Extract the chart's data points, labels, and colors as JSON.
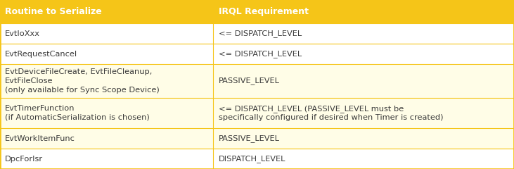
{
  "header": [
    "Routine to Serialize",
    "IRQL Requirement"
  ],
  "rows": [
    [
      "EvtIoXxx",
      "<= DISPATCH_LEVEL"
    ],
    [
      "EvtRequestCancel",
      "<= DISPATCH_LEVEL"
    ],
    [
      "EvtDeviceFileCreate, EvtFileCleanup,\nEvtFileClose\n(only available for Sync Scope Device)",
      "PASSIVE_LEVEL"
    ],
    [
      "EvtTimerFunction\n(if AutomaticSerialization is chosen)",
      "<= DISPATCH_LEVEL (PASSIVE_LEVEL must be\nspecifically configured if desired when Timer is created)"
    ],
    [
      "EvtWorkItemFunc",
      "PASSIVE_LEVEL"
    ],
    [
      "DpcForIsr",
      "DISPATCH_LEVEL"
    ]
  ],
  "header_bg": "#F5C518",
  "row_bg_white": "#FFFFFF",
  "row_bg_yellow": "#FFFDE7",
  "border_color": "#F5C518",
  "header_text_color": "#FFFFFF",
  "row_text_color": "#3a3a3a",
  "col_split": 0.415,
  "header_fontsize": 9.0,
  "row_fontsize": 8.2,
  "row_heights_rel": [
    1.15,
    1.0,
    1.0,
    1.65,
    1.5,
    1.0,
    1.0
  ],
  "fig_width": 7.31,
  "fig_height": 2.4,
  "outer_border_lw": 2.0,
  "inner_border_lw": 0.8
}
